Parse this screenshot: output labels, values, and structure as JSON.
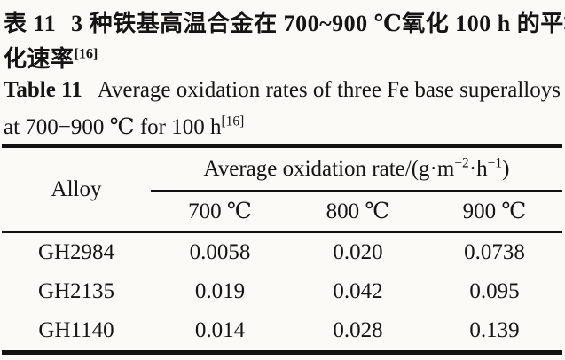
{
  "colors": {
    "background": "#fbfaf6",
    "ink": "#141414",
    "rule": "#121212"
  },
  "caption_zh": {
    "label": "表 11",
    "line1": "3 种铁基高温合金在 700~900 ℃氧化 100 h 的平均氧",
    "line2": "化速率",
    "ref_superscript": "[16]"
  },
  "caption_en": {
    "label": "Table 11",
    "line1": "Average oxidation rates of three Fe base superalloys",
    "line2": "at 700−900 ℃ for 100 h",
    "ref_superscript": "[16]"
  },
  "table": {
    "corner_header": "Alloy",
    "spanner_header": {
      "prefix": "Average oxidation rate/(g·m",
      "sup1": "−2",
      "mid": "·h",
      "sup2": "−1",
      "suffix": ")"
    },
    "temp_headers": [
      "700 ℃",
      "800 ℃",
      "900 ℃"
    ],
    "rows": [
      {
        "alloy": "GH2984",
        "r700": "0.0058",
        "r800": "0.020",
        "r900": "0.0738"
      },
      {
        "alloy": "GH2135",
        "r700": "0.019",
        "r800": "0.042",
        "r900": "0.095"
      },
      {
        "alloy": "GH1140",
        "r700": "0.014",
        "r800": "0.028",
        "r900": "0.139"
      }
    ]
  }
}
